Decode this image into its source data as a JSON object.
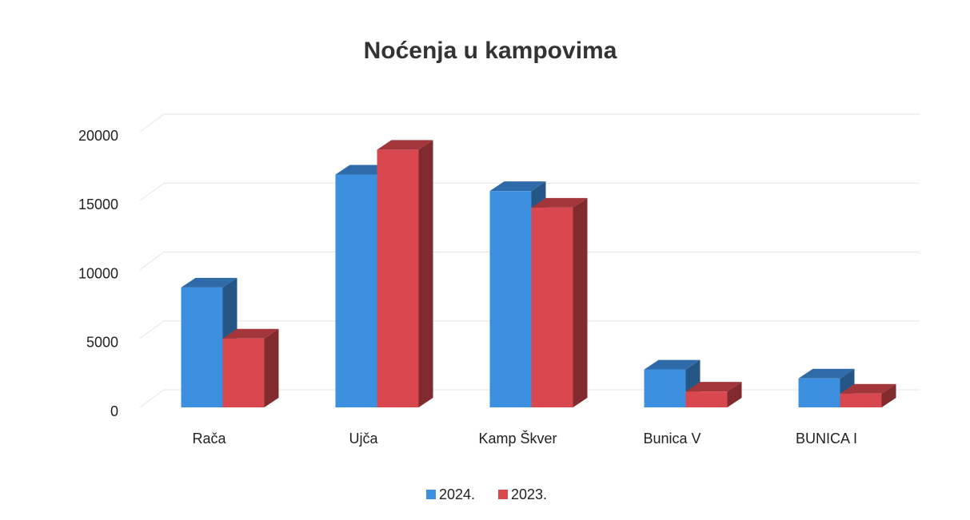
{
  "chart_data": {
    "type": "bar3d",
    "title": "Noćenja u kampovima",
    "categories": [
      "Rača",
      "Ujča",
      "Kamp Škver",
      "Bunica V",
      "BUNICA I"
    ],
    "series": [
      {
        "name": "2024.",
        "color": "#3d8fe0",
        "values": [
          8700,
          16900,
          15700,
          2750,
          2100
        ]
      },
      {
        "name": "2023.",
        "color": "#d9484f",
        "values": [
          5000,
          18700,
          14500,
          1150,
          1000
        ]
      }
    ],
    "ylim": [
      0,
      20000
    ],
    "yticks": [
      0,
      5000,
      10000,
      15000,
      20000
    ],
    "grid": true,
    "legend": "bottom"
  }
}
